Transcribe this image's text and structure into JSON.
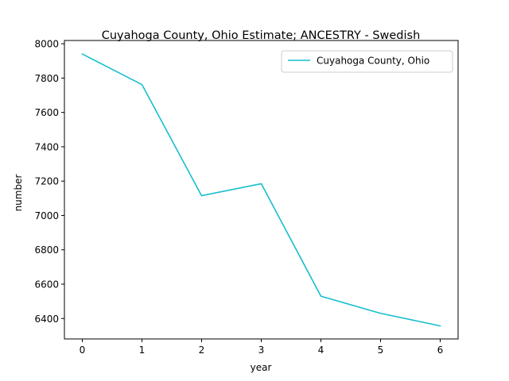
{
  "chart_data": {
    "type": "line",
    "title": "Cuyahoga County, Ohio Estimate; ANCESTRY - Swedish",
    "xlabel": "year",
    "ylabel": "number",
    "x": [
      0,
      1,
      2,
      3,
      4,
      5,
      6
    ],
    "x_ticks": [
      "0",
      "1",
      "2",
      "3",
      "4",
      "5",
      "6"
    ],
    "xlim": [
      -0.3,
      6.3
    ],
    "y_ticks": [
      "6400",
      "6600",
      "6800",
      "7000",
      "7200",
      "7400",
      "7600",
      "7800",
      "8000"
    ],
    "ylim": [
      6281,
      8019
    ],
    "series": [
      {
        "name": "Cuyahoga County, Ohio",
        "color": "#17becf",
        "values": [
          7940,
          7762,
          7115,
          7185,
          6530,
          6430,
          6357
        ]
      }
    ],
    "grid": false,
    "legend": "top-right"
  }
}
